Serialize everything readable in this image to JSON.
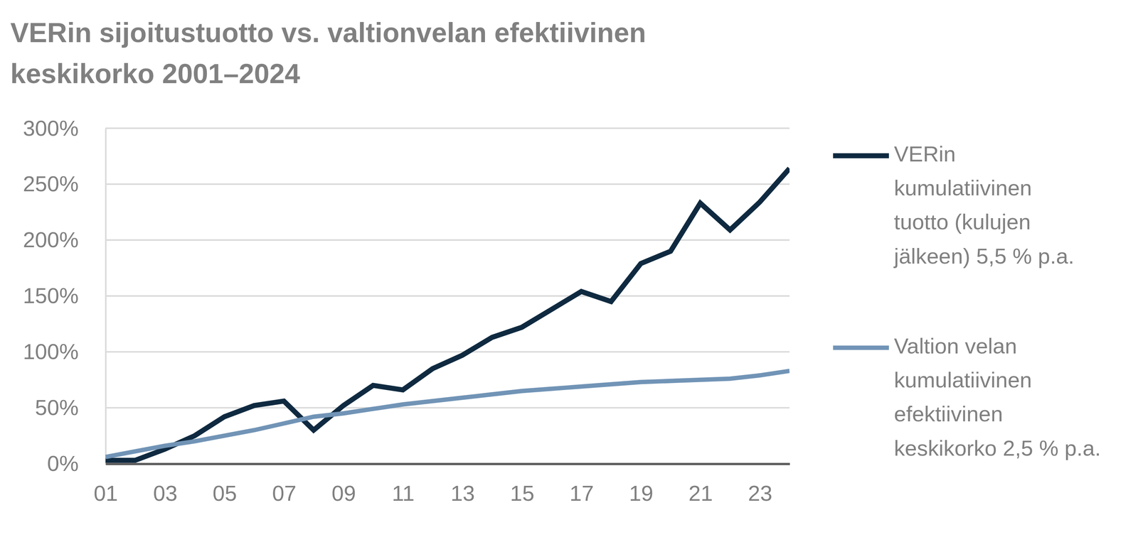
{
  "chart_data": {
    "type": "line",
    "title": "VERin sijoitustuotto vs. valtionvelan efektiivinen keskikorko 2001–2024",
    "x": [
      2001,
      2002,
      2003,
      2004,
      2005,
      2006,
      2007,
      2008,
      2009,
      2010,
      2011,
      2012,
      2013,
      2014,
      2015,
      2016,
      2017,
      2018,
      2019,
      2020,
      2021,
      2022,
      2023,
      2024
    ],
    "xlim": [
      2001,
      2024
    ],
    "xticks": [
      {
        "value": 2001,
        "label": "01"
      },
      {
        "value": 2003,
        "label": "03"
      },
      {
        "value": 2005,
        "label": "05"
      },
      {
        "value": 2007,
        "label": "07"
      },
      {
        "value": 2009,
        "label": "09"
      },
      {
        "value": 2011,
        "label": "11"
      },
      {
        "value": 2013,
        "label": "13"
      },
      {
        "value": 2015,
        "label": "15"
      },
      {
        "value": 2017,
        "label": "17"
      },
      {
        "value": 2019,
        "label": "19"
      },
      {
        "value": 2021,
        "label": "21"
      },
      {
        "value": 2023,
        "label": "23"
      }
    ],
    "ylim": [
      0,
      300
    ],
    "yticks": [
      {
        "value": 0,
        "label": "0%"
      },
      {
        "value": 50,
        "label": "50%"
      },
      {
        "value": 100,
        "label": "100%"
      },
      {
        "value": 150,
        "label": "150%"
      },
      {
        "value": 200,
        "label": "200%"
      },
      {
        "value": 250,
        "label": "250%"
      },
      {
        "value": 300,
        "label": "300%"
      }
    ],
    "grid": true,
    "legend": "right",
    "series": [
      {
        "name": "VERin kumulatiivinen tuotto (kulujen jälkeen) 5,5 % p.a.",
        "color": "#0f2a40",
        "values": [
          3,
          3,
          13,
          25,
          42,
          52,
          56,
          30,
          52,
          70,
          66,
          85,
          97,
          113,
          122,
          138,
          154,
          145,
          179,
          190,
          233,
          209,
          234,
          264
        ]
      },
      {
        "name": "Valtion velan kumulatiivinen efektiivinen keskikorko 2,5 % p.a.",
        "color": "#7194b6",
        "values": [
          6,
          11,
          16,
          20,
          25,
          30,
          36,
          42,
          45,
          49,
          53,
          56,
          59,
          62,
          65,
          67,
          69,
          71,
          73,
          74,
          75,
          76,
          79,
          83
        ]
      }
    ]
  }
}
